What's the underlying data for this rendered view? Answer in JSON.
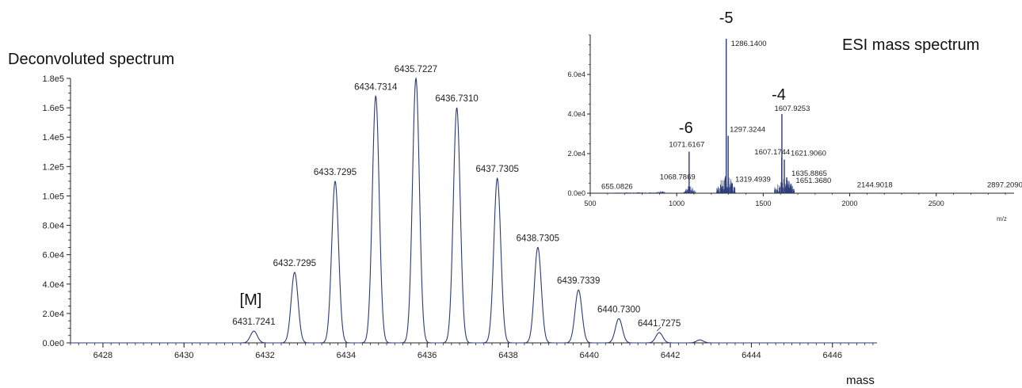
{
  "chart_data": [
    {
      "type": "line",
      "title": "Deconvoluted spectrum",
      "xlabel": "mass",
      "ylabel": "",
      "xlim": [
        6427.2,
        6447.1
      ],
      "ylim": [
        0,
        180000
      ],
      "x_ticks": [
        6428,
        6430,
        6432,
        6434,
        6436,
        6438,
        6440,
        6442,
        6444,
        6446
      ],
      "x_tick_labels": [
        "6428",
        "6430",
        "6432",
        "6434",
        "6436",
        "6438",
        "6440",
        "6442",
        "6444",
        "6446"
      ],
      "y_ticks": [
        0,
        20000,
        40000,
        60000,
        80000,
        100000,
        120000,
        140000,
        160000,
        180000
      ],
      "y_tick_labels": [
        "0.0e0",
        "2.0e4",
        "4.0e4",
        "6.0e4",
        "8.0e4",
        "1.0e5",
        "1.2e5",
        "1.4e5",
        "1.6e5",
        "1.8e5"
      ],
      "peak_width": 0.085,
      "peaks": [
        {
          "x": 6431.7241,
          "y": 8000,
          "label": "6431.7241"
        },
        {
          "x": 6432.7295,
          "y": 48000,
          "label": "6432.7295"
        },
        {
          "x": 6433.7295,
          "y": 110000,
          "label": "6433.7295"
        },
        {
          "x": 6434.7314,
          "y": 168000,
          "label": "6434.7314"
        },
        {
          "x": 6435.7227,
          "y": 180000,
          "label": "6435.7227"
        },
        {
          "x": 6436.731,
          "y": 160000,
          "label": "6436.7310"
        },
        {
          "x": 6437.7305,
          "y": 112000,
          "label": "6437.7305"
        },
        {
          "x": 6438.7305,
          "y": 65000,
          "label": "6438.7305"
        },
        {
          "x": 6439.7339,
          "y": 36000,
          "label": "6439.7339"
        },
        {
          "x": 6440.73,
          "y": 16500,
          "label": "6440.7300"
        },
        {
          "x": 6441.7275,
          "y": 7000,
          "label": "6441.7275"
        },
        {
          "x": 6442.73,
          "y": 2000,
          "label": ""
        }
      ],
      "annotations": [
        {
          "text": "[M]",
          "x": 6431.7241
        }
      ],
      "line_color": "#2b3a78"
    },
    {
      "type": "bar",
      "title": "ESI mass spectrum",
      "xlabel": "m/z",
      "ylabel": "",
      "xlim": [
        500,
        2950
      ],
      "ylim": [
        0,
        80000
      ],
      "x_ticks": [
        500,
        1000,
        1500,
        2000,
        2500
      ],
      "x_tick_labels": [
        "500",
        "1000",
        "1500",
        "2000",
        "2500"
      ],
      "y_ticks": [
        0,
        20000,
        40000,
        60000
      ],
      "y_tick_labels": [
        "0.0e0",
        "2.0e4",
        "4.0e4",
        "6.0e4"
      ],
      "peaks": [
        {
          "x": 655.0826,
          "y": 300,
          "label": "655.0826"
        },
        {
          "x": 1068.7869,
          "y": 3500,
          "label": "1068.7869"
        },
        {
          "x": 1071.6167,
          "y": 21000,
          "label": "1071.6167"
        },
        {
          "x": 1286.14,
          "y": 78000,
          "label": "1286.1400"
        },
        {
          "x": 1297.3244,
          "y": 29000,
          "label": "1297.3244"
        },
        {
          "x": 1319.4939,
          "y": 5000,
          "label": "1319.4939"
        },
        {
          "x": 1607.9253,
          "y": 40000,
          "label": "1607.9253"
        },
        {
          "x": 1607.1744,
          "y": 18000,
          "label": "1607.1744"
        },
        {
          "x": 1621.906,
          "y": 17000,
          "label": "1621.9060"
        },
        {
          "x": 1635.8865,
          "y": 8000,
          "label": "1635.8865"
        },
        {
          "x": 1651.368,
          "y": 2000,
          "label": "1651.3680"
        },
        {
          "x": 2144.9018,
          "y": 200,
          "label": "2144.9018"
        },
        {
          "x": 2897.209,
          "y": 300,
          "label": "2897.2090"
        }
      ],
      "charge_states": [
        {
          "text": "-5",
          "x": 1286.14
        },
        {
          "text": "-4",
          "x": 1607.9253
        },
        {
          "text": "-6",
          "x": 1071.6167
        }
      ],
      "bar_color": "#2b3a78"
    }
  ]
}
